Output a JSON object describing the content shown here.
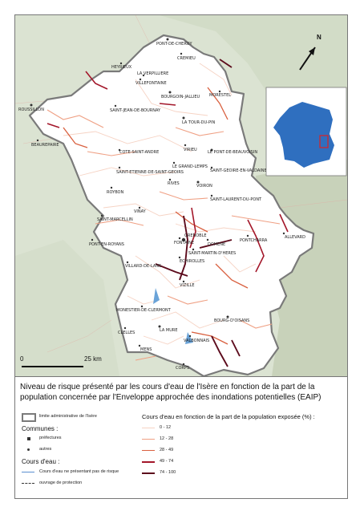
{
  "map": {
    "title": "Niveau de risque présenté par les cours d'eau de l'Isère en fonction de la part de la population concernée par l'Enveloppe approchée des inondations potentielles (EAIP)",
    "scale_bar": {
      "start": "0",
      "end": "25 km"
    },
    "north_arrow": "N",
    "inset": "France locator map",
    "towns": [
      "PONT-DE-CHERUY",
      "CREMIEU",
      "HEYRIEUX",
      "LA VERPILLIERE",
      "VILLEFONTAINE",
      "BOURGOIN-JALLIEU",
      "MORESTEL",
      "ROUSSILLON",
      "SAINT-JEAN-DE-BOURNAY",
      "LA TOUR-DU-PIN",
      "BEAUREPAIRE",
      "COTE-SAINT-ANDRE",
      "VIRIEU",
      "LE PONT-DE-BEAUVOISIN",
      "LE GRAND-LEMPS",
      "SAINT-ETIENNE-DE-SAINT-GEOIRS",
      "SAINT-GEOIRE-EN-VALDAINE",
      "ROYBON",
      "RIVES",
      "VOIRON",
      "SAINT-LAURENT-DU-PONT",
      "VINAY",
      "SAINT-MARCELLIN",
      "GRENOBLE",
      "PONTCHARRA",
      "ALLEVARD",
      "PONT-EN-ROYANS",
      "FONTAINE",
      "DOMENE",
      "SAINT-MARTIN-D'HERES",
      "VILLARD-DE-LANS",
      "ECHIROLLES",
      "VIZILLE",
      "MONESTIER-DE-CLERMONT",
      "BOURG-D'OISANS",
      "CLELLES",
      "LA MURE",
      "VALBONNAIS",
      "MENS",
      "CORPS"
    ]
  },
  "legend": {
    "boundary_label": "limite administrative de l'Isère",
    "communes_header": "Communes :",
    "prefectures_label": "préfectures",
    "others_label": "autres",
    "rivers_header": "Cours d'eau :",
    "no_risk_label": "Cours d'eau ne présentant pas de risque",
    "protection_label": "ouvrage de protection",
    "classes_title": "Cours d'eau en fonction de la part de la population exposée (%) :",
    "classes": [
      {
        "label": "0 - 12",
        "color": "#f6d3c4"
      },
      {
        "label": "12 - 28",
        "color": "#efa084"
      },
      {
        "label": "28 - 49",
        "color": "#d9603f"
      },
      {
        "label": "49 - 74",
        "color": "#a3172a"
      },
      {
        "label": "74 - 100",
        "color": "#5c0b1c"
      }
    ]
  }
}
